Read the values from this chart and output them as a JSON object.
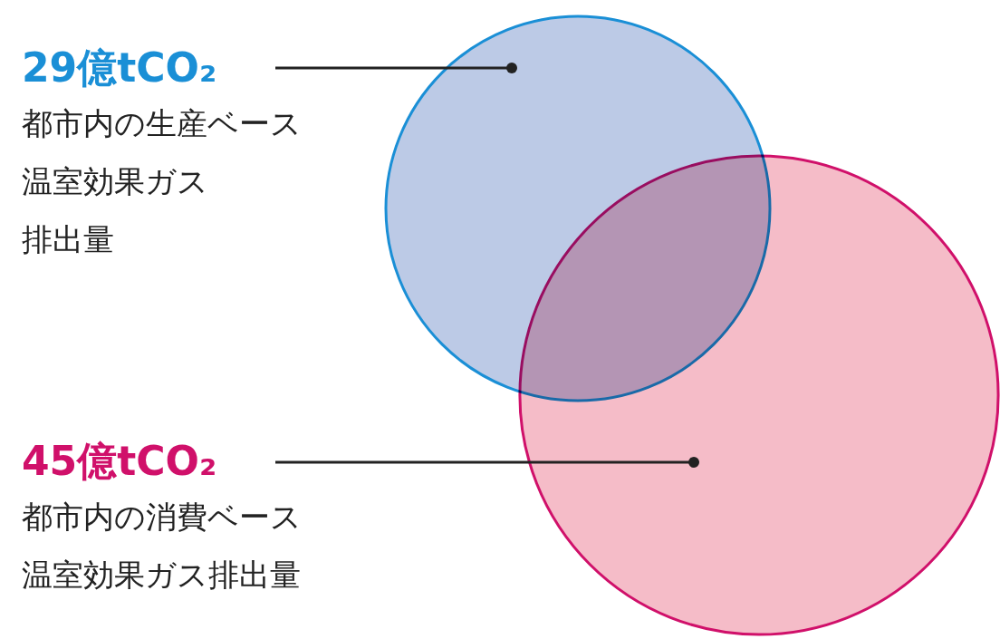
{
  "chart_data": {
    "type": "other",
    "categories": [
      "都市内の生産ベース温室効果ガス排出量",
      "都市内の消費ベース温室効果ガス排出量"
    ],
    "values": [
      29,
      45
    ],
    "value_labels": [
      "29億tCO₂",
      "45億tCO₂"
    ],
    "colors": [
      "#bccae6",
      "#f5bcc8"
    ]
  }
}
